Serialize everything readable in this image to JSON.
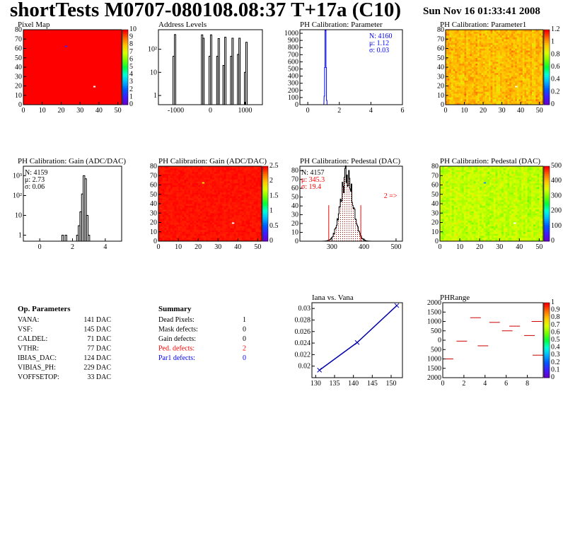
{
  "header": {
    "title": "shortTests M0707-080108.08:37 T+17a (C10)",
    "date": "Sun Nov 16 01:33:41 2008"
  },
  "colors": {
    "map_red": "#ff0000",
    "map_green": "#00ff00",
    "hist_line": "#000000",
    "fit_line": "#ff0000",
    "blue_text": "#0000ff",
    "red_text": "#ff0000",
    "fill_hatch": "#a00000"
  },
  "palette_labels": {
    "pixel_map": [
      "0",
      "1",
      "2",
      "3",
      "4",
      "5",
      "6",
      "7",
      "8",
      "9",
      "10"
    ],
    "param1": [
      "0",
      "0.2",
      "0.4",
      "0.6",
      "0.8",
      "1",
      "1.2"
    ],
    "gain": [
      "0",
      "0.5",
      "1",
      "1.5",
      "2",
      "2.5"
    ],
    "pedestal": [
      "0",
      "100",
      "200",
      "300",
      "400",
      "500"
    ],
    "phrange": [
      "0",
      "0.1",
      "0.2",
      "0.3",
      "0.4",
      "0.5",
      "0.6",
      "0.7",
      "0.8",
      "0.9",
      "1"
    ]
  },
  "panels": {
    "pixel_map": {
      "title": "Pixel Map"
    },
    "address_levels": {
      "title": "Address Levels"
    },
    "ph_param": {
      "title": "PH Calibration: Parameter",
      "stats": [
        "N: 4160",
        "μ: 1.12",
        "σ: 0.03"
      ]
    },
    "ph_param1": {
      "title": "PH Calibration: Parameter1"
    },
    "gain_hist": {
      "title": "PH Calibration: Gain (ADC/DAC)",
      "stats": [
        "N: 4159",
        "μ: 2.73",
        "σ: 0.06"
      ]
    },
    "gain_map": {
      "title": "PH Calibration: Gain (ADC/DAC)"
    },
    "pedestal_hist": {
      "title": "PH Calibration: Pedestal (DAC)",
      "stats": [
        "N: 4157",
        "μ: 345.3",
        "σ: 19.4"
      ],
      "overflow_note": "2 =>"
    },
    "pedestal_map": {
      "title": "PH Calibration: Pedestal (DAC)"
    },
    "iana": {
      "title": "Iana vs. Vana"
    },
    "phrange": {
      "title": "PHRange"
    }
  },
  "op_parameters": {
    "heading": "Op. Parameters",
    "rows": [
      {
        "name": "VANA:",
        "value": "141 DAC"
      },
      {
        "name": "VSF:",
        "value": "145 DAC"
      },
      {
        "name": "CALDEL:",
        "value": "71 DAC"
      },
      {
        "name": "VTHR:",
        "value": "77 DAC"
      },
      {
        "name": "IBIAS_DAC:",
        "value": "124 DAC"
      },
      {
        "name": "VIBIAS_PH:",
        "value": "229 DAC"
      },
      {
        "name": "VOFFSETOP:",
        "value": "33 DAC"
      }
    ]
  },
  "summary": {
    "heading": "Summary",
    "rows": [
      {
        "name": "Dead Pixels:",
        "value": "1",
        "color": "#000000"
      },
      {
        "name": "Mask defects:",
        "value": "0",
        "color": "#000000"
      },
      {
        "name": "Gain defects:",
        "value": "0",
        "color": "#000000"
      },
      {
        "name": "Ped. defects:",
        "value": "2",
        "color": "#ff0000"
      },
      {
        "name": "Par1 defects:",
        "value": "0",
        "color": "#0000ff"
      }
    ]
  },
  "chart_data": [
    {
      "id": "pixel_map",
      "type": "heatmap",
      "title": "Pixel Map",
      "xlim": [
        0,
        52
      ],
      "ylim": [
        0,
        80
      ],
      "zlim": [
        0,
        10
      ],
      "xticks": [
        "0",
        "10",
        "20",
        "30",
        "40",
        "50"
      ],
      "yticks": [
        "0",
        "10",
        "20",
        "30",
        "40",
        "50",
        "60",
        "70",
        "80"
      ],
      "base_value": 10,
      "special_pixels": [
        {
          "x": 37,
          "y": 19,
          "value": 0,
          "label": "dead"
        },
        {
          "x": 22,
          "y": 62,
          "value": 1
        }
      ]
    },
    {
      "id": "address_levels",
      "type": "bar",
      "title": "Address Levels",
      "log_y": true,
      "xlim": [
        -1500,
        1500
      ],
      "xticks": [
        "-1000",
        "0",
        "1000"
      ],
      "yticks": [
        "1",
        "10",
        "10²"
      ],
      "peaks": [
        {
          "x": -1060,
          "count": 50
        },
        {
          "x": -1020,
          "count": 430
        },
        {
          "x": -240,
          "count": 420
        },
        {
          "x": -200,
          "count": 300
        },
        {
          "x": -20,
          "count": 50
        },
        {
          "x": 20,
          "count": 420
        },
        {
          "x": 200,
          "count": 50
        },
        {
          "x": 240,
          "count": 290
        },
        {
          "x": 380,
          "count": 20
        },
        {
          "x": 430,
          "count": 330
        },
        {
          "x": 600,
          "count": 50
        },
        {
          "x": 640,
          "count": 300
        },
        {
          "x": 800,
          "count": 60
        },
        {
          "x": 840,
          "count": 300
        },
        {
          "x": 1000,
          "count": 10
        },
        {
          "x": 1040,
          "count": 200
        }
      ]
    },
    {
      "id": "ph_param",
      "type": "bar",
      "title": "PH Calibration: Parameter",
      "xlim": [
        -0.5,
        6
      ],
      "ylim": [
        0,
        1050
      ],
      "xticks": [
        "0",
        "2",
        "4",
        "6"
      ],
      "yticks": [
        "0",
        "100",
        "200",
        "300",
        "400",
        "500",
        "600",
        "700",
        "800",
        "900",
        "1000"
      ],
      "bins": [
        {
          "x": 1.05,
          "count": 120
        },
        {
          "x": 1.08,
          "count": 520
        },
        {
          "x": 1.11,
          "count": 1040
        },
        {
          "x": 1.14,
          "count": 1040
        },
        {
          "x": 1.17,
          "count": 520
        },
        {
          "x": 1.2,
          "count": 60
        }
      ],
      "stats": {
        "N": 4160,
        "mean": 1.12,
        "sigma": 0.03
      }
    },
    {
      "id": "ph_param1",
      "type": "heatmap",
      "title": "PH Calibration: Parameter1",
      "xlim": [
        0,
        52
      ],
      "ylim": [
        0,
        80
      ],
      "zlim": [
        0,
        1.2
      ],
      "xticks": [
        "0",
        "10",
        "20",
        "30",
        "40",
        "50"
      ],
      "yticks": [
        "0",
        "10",
        "20",
        "30",
        "40",
        "50",
        "60",
        "70",
        "80"
      ],
      "typical_range": [
        0.85,
        1.1
      ],
      "special_pixels": [
        {
          "x": 37,
          "y": 19,
          "value": 0
        }
      ]
    },
    {
      "id": "gain_hist",
      "type": "bar",
      "title": "PH Calibration: Gain (ADC/DAC)",
      "log_y": true,
      "xlim": [
        -1,
        5
      ],
      "xticks": [
        "0",
        "2",
        "4"
      ],
      "yticks": [
        "1",
        "10",
        "10²",
        "10³"
      ],
      "bins": [
        {
          "x": 1.4,
          "count": 1
        },
        {
          "x": 1.6,
          "count": 1
        },
        {
          "x": 2.3,
          "count": 1
        },
        {
          "x": 2.4,
          "count": 3
        },
        {
          "x": 2.5,
          "count": 15
        },
        {
          "x": 2.6,
          "count": 120
        },
        {
          "x": 2.7,
          "count": 1000
        },
        {
          "x": 2.8,
          "count": 700
        },
        {
          "x": 2.9,
          "count": 10
        },
        {
          "x": 3.0,
          "count": 1
        }
      ],
      "stats": {
        "N": 4159,
        "mean": 2.73,
        "sigma": 0.06
      }
    },
    {
      "id": "gain_map",
      "type": "heatmap",
      "title": "PH Calibration: Gain (ADC/DAC)",
      "xlim": [
        0,
        52
      ],
      "ylim": [
        0,
        80
      ],
      "zlim": [
        0,
        2.7
      ],
      "xticks": [
        "0",
        "10",
        "20",
        "30",
        "40",
        "50"
      ],
      "yticks": [
        "0",
        "10",
        "20",
        "30",
        "40",
        "50",
        "60",
        "70",
        "80"
      ],
      "typical_range": [
        2.6,
        2.85
      ],
      "special_pixels": [
        {
          "x": 37,
          "y": 19,
          "value": 0
        },
        {
          "x": 22,
          "y": 62,
          "value": 2.0
        }
      ]
    },
    {
      "id": "pedestal_hist",
      "type": "bar",
      "title": "PH Calibration: Pedestal (DAC)",
      "xlim": [
        200,
        520
      ],
      "ylim": [
        0,
        85
      ],
      "xticks": [
        "300",
        "400",
        "500"
      ],
      "yticks": [
        "0",
        "10",
        "20",
        "30",
        "40",
        "50",
        "60",
        "70",
        "80"
      ],
      "gauss_fit": {
        "mean": 345.3,
        "sigma": 19.4,
        "peak": 74
      },
      "fit_range": [
        290,
        390
      ],
      "stats": {
        "N": 4157,
        "mean": 345.3,
        "sigma": 19.4
      }
    },
    {
      "id": "pedestal_map",
      "type": "heatmap",
      "title": "PH Calibration: Pedestal (DAC)",
      "xlim": [
        0,
        52
      ],
      "ylim": [
        0,
        80
      ],
      "zlim": [
        0,
        520
      ],
      "xticks": [
        "0",
        "10",
        "20",
        "30",
        "40",
        "50"
      ],
      "yticks": [
        "0",
        "10",
        "20",
        "30",
        "40",
        "50",
        "60",
        "70",
        "80"
      ],
      "typical_range": [
        300,
        400
      ],
      "special_pixels": [
        {
          "x": 37,
          "y": 19,
          "value": 0
        },
        {
          "x": 22,
          "y": 62,
          "value": 140
        }
      ]
    },
    {
      "id": "iana",
      "type": "line",
      "title": "Iana vs. Vana",
      "xlim": [
        129,
        153
      ],
      "ylim": [
        0.018,
        0.031
      ],
      "xticks": [
        "130",
        "135",
        "140",
        "145",
        "150"
      ],
      "yticks": [
        "0.02",
        "0.022",
        "0.024",
        "0.026",
        "0.028",
        "0.03"
      ],
      "x": [
        131,
        141,
        151.5
      ],
      "y": [
        0.0193,
        0.0241,
        0.0305
      ]
    },
    {
      "id": "phrange",
      "type": "scatter",
      "title": "PHRange",
      "xlim": [
        0,
        9.5
      ],
      "ylim": [
        -2000,
        2000
      ],
      "xticks": [
        "0",
        "2",
        "4",
        "6",
        "8"
      ],
      "yticks": [
        "-2000",
        "-1500",
        "-1000",
        "-500",
        "0",
        "500",
        "1000",
        "1500",
        "2000"
      ],
      "segments": [
        {
          "x0": 0,
          "x1": 1,
          "y": -1000
        },
        {
          "x0": 1.3,
          "x1": 2.3,
          "y": -50
        },
        {
          "x0": 2.6,
          "x1": 3.6,
          "y": 1200
        },
        {
          "x0": 3.3,
          "x1": 4.3,
          "y": -300
        },
        {
          "x0": 4.4,
          "x1": 5.4,
          "y": 950
        },
        {
          "x0": 5.6,
          "x1": 6.6,
          "y": 500
        },
        {
          "x0": 6.3,
          "x1": 7.3,
          "y": 750
        },
        {
          "x0": 7.7,
          "x1": 8.7,
          "y": 250
        },
        {
          "x0": 8.4,
          "x1": 9.4,
          "y": 1000
        },
        {
          "x0": 8.5,
          "x1": 9.5,
          "y": -800
        }
      ]
    }
  ]
}
